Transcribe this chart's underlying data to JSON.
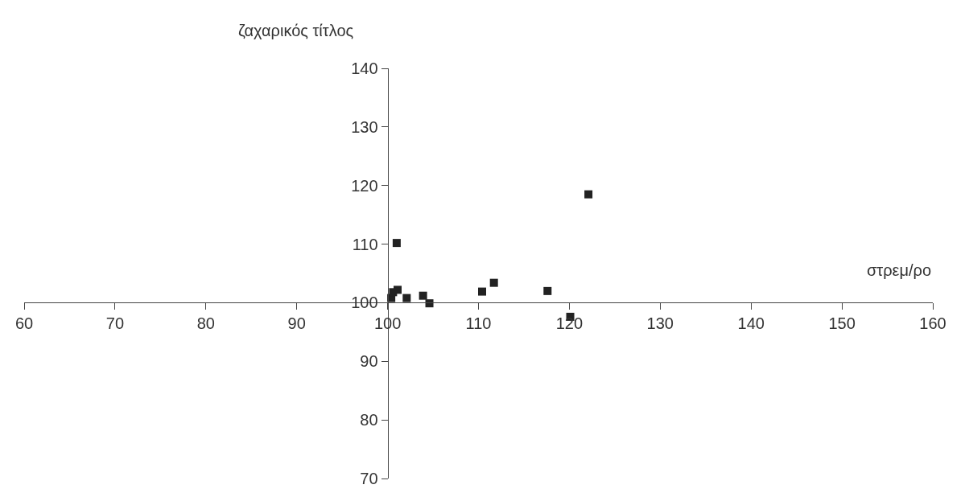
{
  "chart_data": {
    "type": "scatter",
    "xlabel": "στρεμ/ρο",
    "ylabel": "ζαχαρικός τίτλος",
    "x": [
      101.0,
      100.4,
      100.6,
      101.1,
      102.1,
      103.9,
      104.6,
      110.4,
      111.7,
      117.6,
      120.1,
      122.1
    ],
    "values": [
      110.2,
      100.8,
      101.8,
      102.2,
      100.8,
      101.2,
      99.9,
      101.9,
      103.4,
      102.0,
      97.6,
      118.5
    ],
    "color": "#222222",
    "marker": "square",
    "xlim": [
      60,
      160
    ],
    "xticks": [
      60,
      70,
      80,
      90,
      100,
      110,
      120,
      130,
      140,
      150,
      160
    ],
    "ylim": [
      70,
      140
    ],
    "yticks": [
      70,
      80,
      90,
      100,
      110,
      120,
      130,
      140
    ],
    "legend": false
  }
}
